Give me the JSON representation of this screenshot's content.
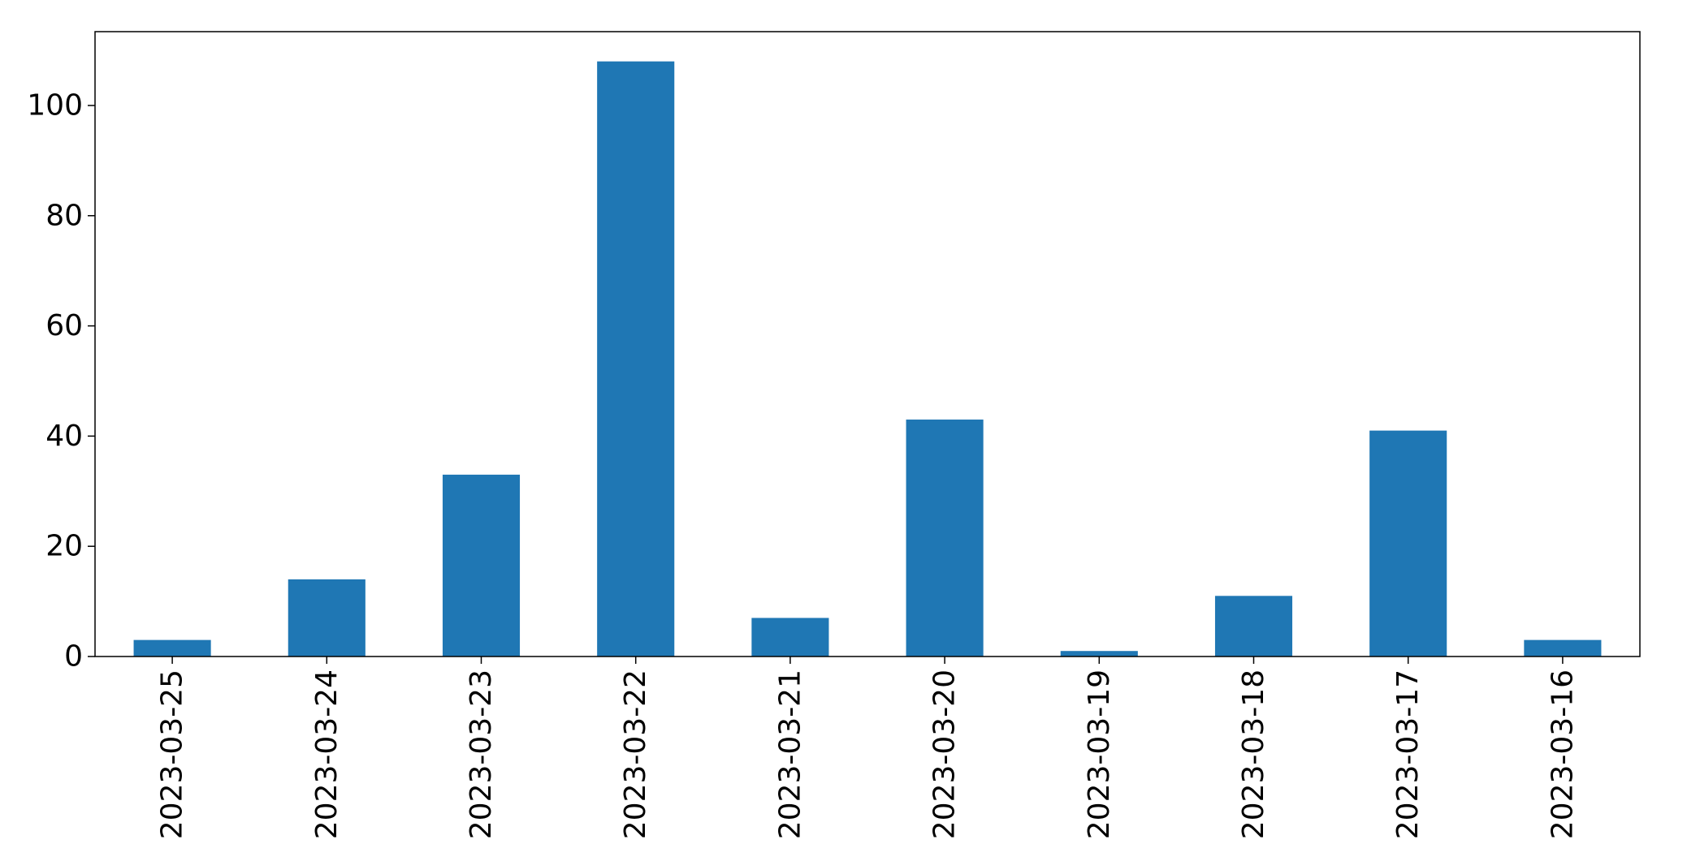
{
  "chart_data": {
    "type": "bar",
    "title": "",
    "xlabel": "",
    "ylabel": "",
    "categories": [
      "2023-03-25",
      "2023-03-24",
      "2023-03-23",
      "2023-03-22",
      "2023-03-21",
      "2023-03-20",
      "2023-03-19",
      "2023-03-18",
      "2023-03-17",
      "2023-03-16"
    ],
    "values": [
      3,
      14,
      33,
      108,
      7,
      43,
      1,
      11,
      41,
      3
    ],
    "ylim": [
      0,
      113.4
    ],
    "yticks": [
      0,
      20,
      40,
      60,
      80,
      100
    ],
    "bar_color": "#1f77b4",
    "grid": false,
    "legend": "none",
    "x_tick_rotation": "vertical"
  }
}
